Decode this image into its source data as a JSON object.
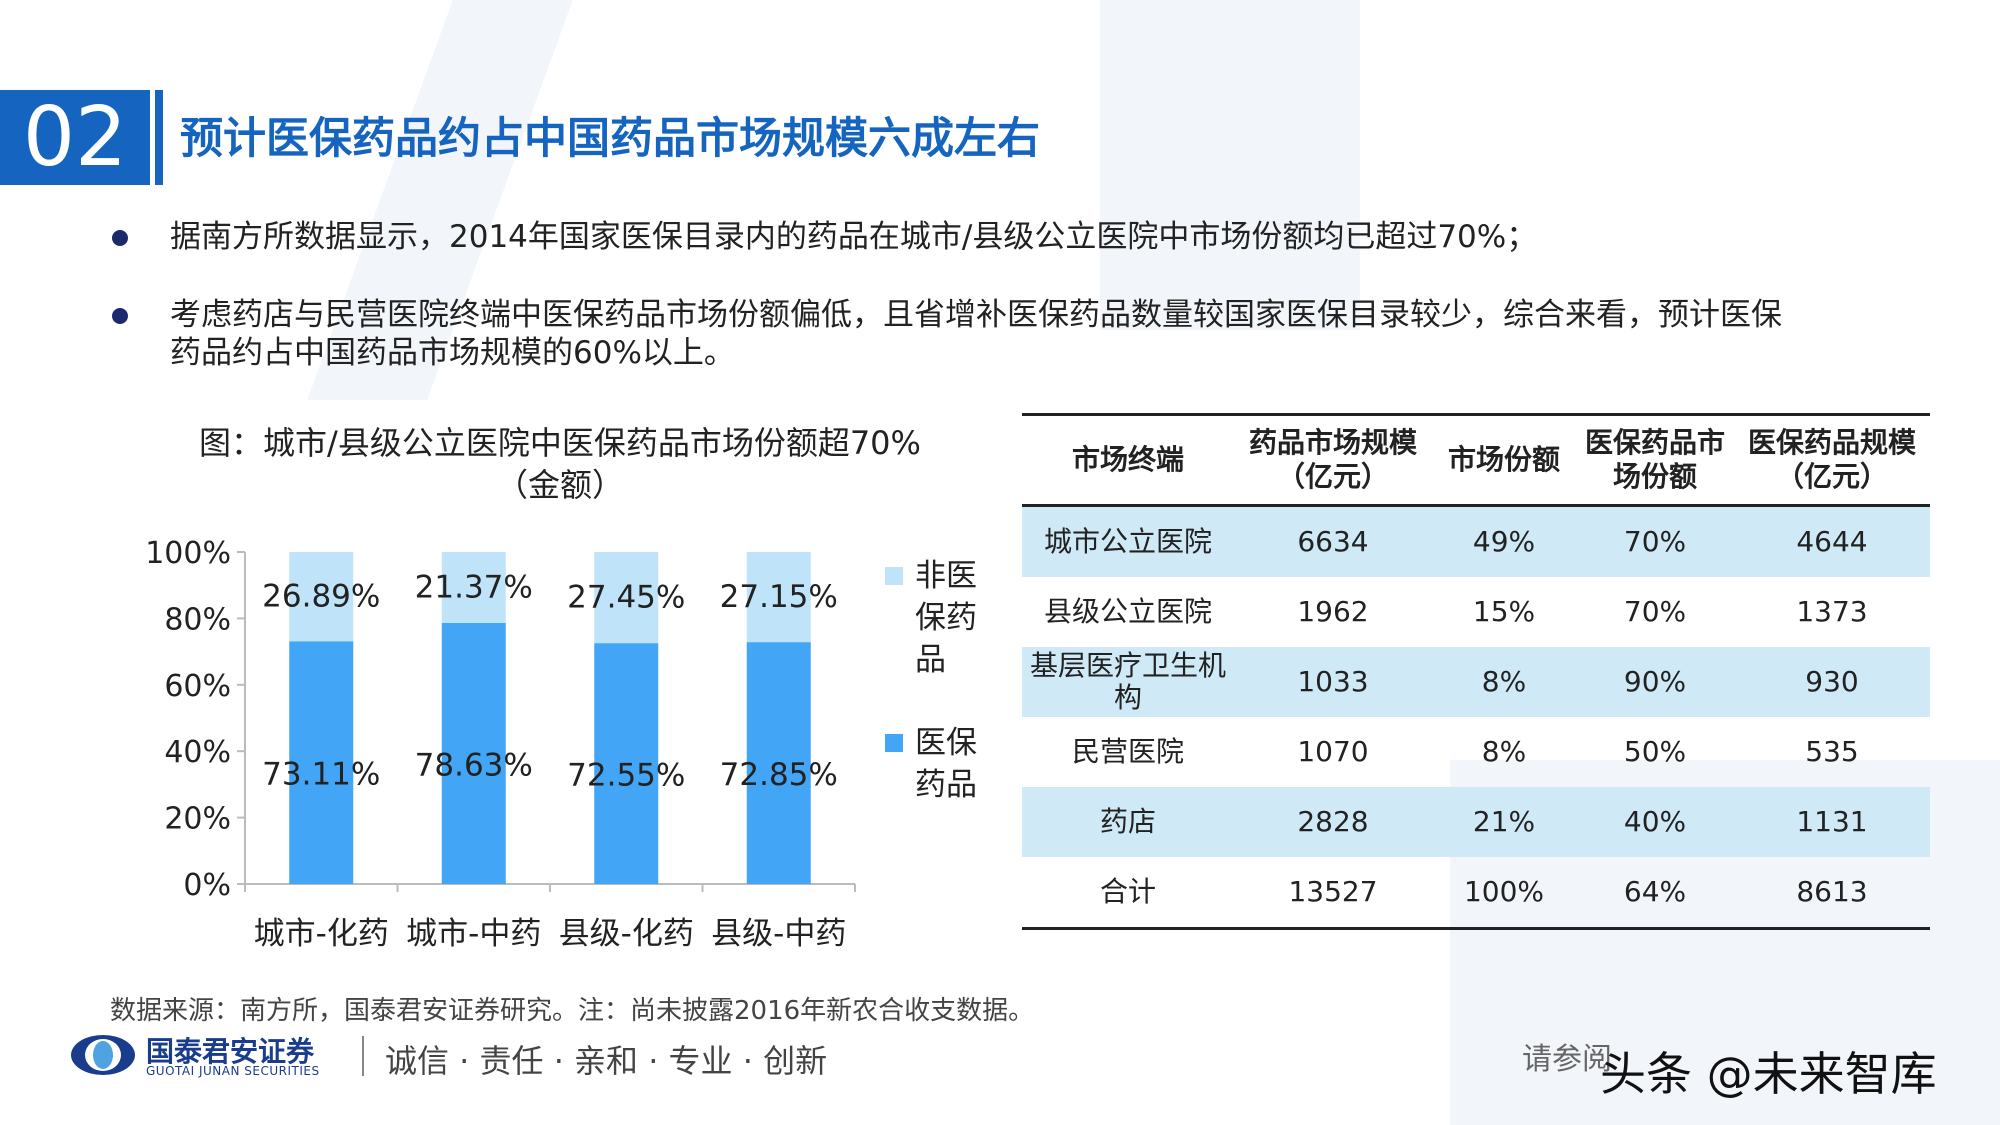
{
  "slide": {
    "number": "02",
    "title": "预计医保药品约占中国药品市场规模六成左右"
  },
  "bullets": [
    "据南方所数据显示，2014年国家医保目录内的药品在城市/县级公立医院中市场份额均已超过70%；",
    "考虑药店与民营医院终端中医保药品市场份额偏低，且省增补医保药品数量较国家医保目录较少，综合来看，预计医保",
    "药品约占中国药品市场规模的60%以上。"
  ],
  "chart_title_line1": "图：城市/县级公立医院中医保药品市场份额超70%",
  "chart_title_line2": "（金额）",
  "chart_data": {
    "type": "bar",
    "stacked": true,
    "percent": true,
    "categories": [
      "城市-化药",
      "城市-中药",
      "县级-化药",
      "县级-中药"
    ],
    "series": [
      {
        "name": "医保药品",
        "values": [
          73.11,
          78.63,
          72.55,
          72.85
        ],
        "labels": [
          "73.11%",
          "78.63%",
          "72.55%",
          "72.85%"
        ],
        "color": "#42a5f5"
      },
      {
        "name": "非医保药品",
        "values": [
          26.89,
          21.37,
          27.45,
          27.15
        ],
        "labels": [
          "26.89%",
          "21.37%",
          "27.45%",
          "27.15%"
        ],
        "color": "#bfe3f8"
      }
    ],
    "yticks": [
      "0%",
      "20%",
      "40%",
      "60%",
      "80%",
      "100%"
    ],
    "ylim": [
      0,
      100
    ],
    "legend_position": "right"
  },
  "table": {
    "headers": [
      "市场终端",
      "药品市场规模（亿元）",
      "市场份额",
      "医保药品市场份额",
      "医保药品规模（亿元）"
    ],
    "rows": [
      [
        "城市公立医院",
        "6634",
        "49%",
        "70%",
        "4644"
      ],
      [
        "县级公立医院",
        "1962",
        "15%",
        "70%",
        "1373"
      ],
      [
        "基层医疗卫生机构",
        "1033",
        "8%",
        "90%",
        "930"
      ],
      [
        "民营医院",
        "1070",
        "8%",
        "50%",
        "535"
      ],
      [
        "药店",
        "2828",
        "21%",
        "40%",
        "1131"
      ],
      [
        "合计",
        "13527",
        "100%",
        "64%",
        "8613"
      ]
    ]
  },
  "source": "数据来源：南方所，国泰君安证券研究。注：尚未披露2016年新农合收支数据。",
  "footer": {
    "brand_cn": "国泰君安证券",
    "brand_en": "GUOTAI JUNAN SECURITIES",
    "slogan": "诚信 · 责任 · 亲和 · 专业 · 创新",
    "disclaimer": "请参阅",
    "watermark": "头条 @未来智库"
  },
  "colors": {
    "accent": "#1565c0",
    "bar_insured": "#42a5f5",
    "bar_noninsured": "#bfe3f8",
    "table_stripe": "#cfe9f7"
  }
}
